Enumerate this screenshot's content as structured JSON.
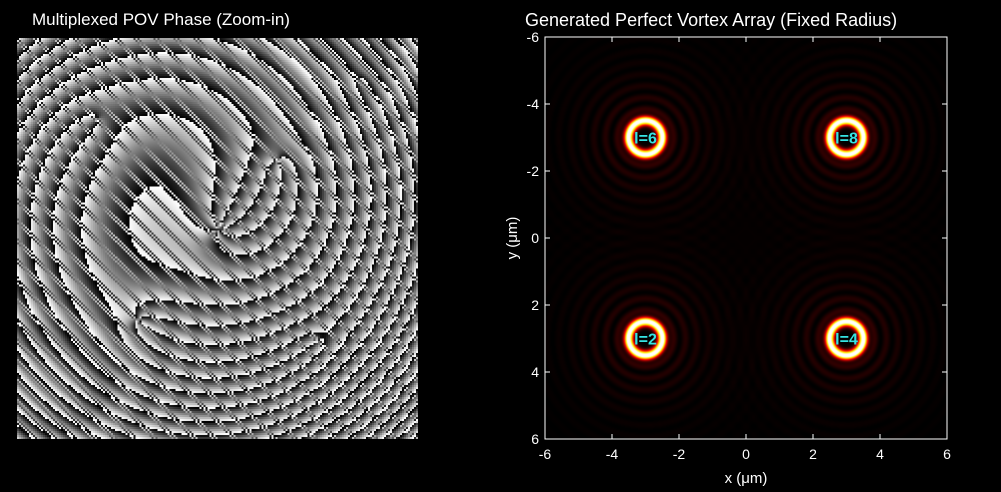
{
  "left_panel": {
    "title": "Multiplexed POV Phase (Zoom-in)",
    "colormap": "gray"
  },
  "right_panel": {
    "title": "Generated Perfect Vortex Array (Fixed Radius)",
    "colormap": "hot",
    "background": "#000000"
  },
  "chart_data": {
    "type": "heatmap",
    "title": "Generated Perfect Vortex Array (Fixed Radius)",
    "xlabel": "x (μm)",
    "ylabel": "y (μm)",
    "xlim": [
      -6,
      6
    ],
    "ylim": [
      -6,
      6
    ],
    "y_reversed": true,
    "x_ticks": [
      "-6",
      "-4",
      "-2",
      "0",
      "2",
      "4",
      "6"
    ],
    "y_ticks": [
      "-6",
      "-4",
      "-2",
      "0",
      "2",
      "4",
      "6"
    ],
    "grid": false,
    "vortices": [
      {
        "label": "l=6",
        "x": -3,
        "y": -3
      },
      {
        "label": "l=8",
        "x": 3,
        "y": -3
      },
      {
        "label": "l=2",
        "x": -3,
        "y": 3
      },
      {
        "label": "l=4",
        "x": 3,
        "y": 3
      }
    ],
    "ring_radius_um": 0.5,
    "label_color": "#36e3e3"
  }
}
